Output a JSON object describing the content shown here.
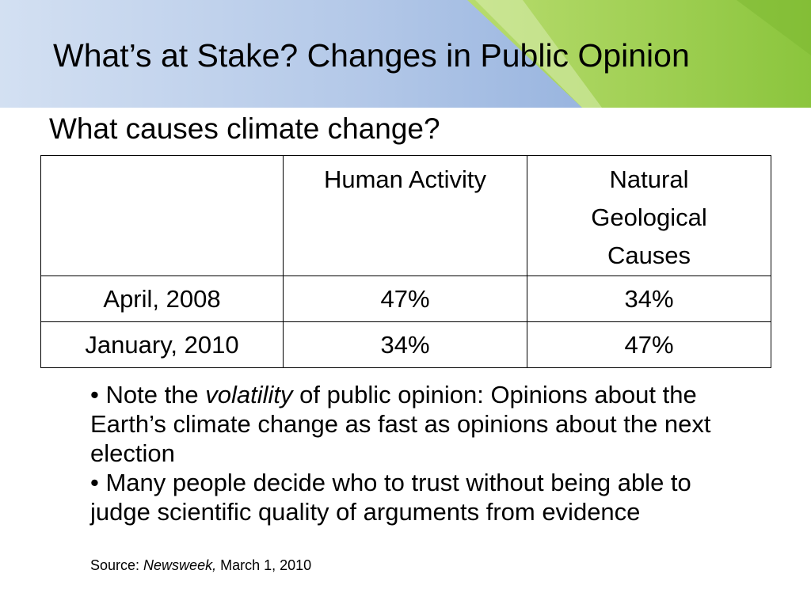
{
  "slide": {
    "title": "What’s at Stake? Changes in Public Opinion",
    "subtitle": "What causes climate change?",
    "header_colors": {
      "blue_light": "#c9d8ee",
      "blue_dark": "#8faedb",
      "green": "#8cc63e",
      "green_light": "#b7db6c"
    }
  },
  "table": {
    "headers": {
      "empty": "",
      "human_activity": "Human Activity",
      "natural_lines": [
        "Natural",
        "Geological",
        "Causes"
      ]
    },
    "rows": [
      {
        "label": "April, 2008",
        "human": "47%",
        "natural": "34%"
      },
      {
        "label": "January, 2010",
        "human": "34%",
        "natural": "47%"
      }
    ]
  },
  "notes": {
    "note1": {
      "bullet": "•",
      "before": " Note the ",
      "emphasis": "volatility",
      "after": " of public opinion: Opinions about the Earth’s climate change as fast as opinions about the next election"
    },
    "note2": {
      "bullet": "•",
      "text": " Many people decide who to trust without being able to judge scientific quality of arguments from evidence"
    }
  },
  "source": {
    "prefix": "Source: ",
    "publication": "Newsweek,",
    "date": " March 1, 2010"
  }
}
